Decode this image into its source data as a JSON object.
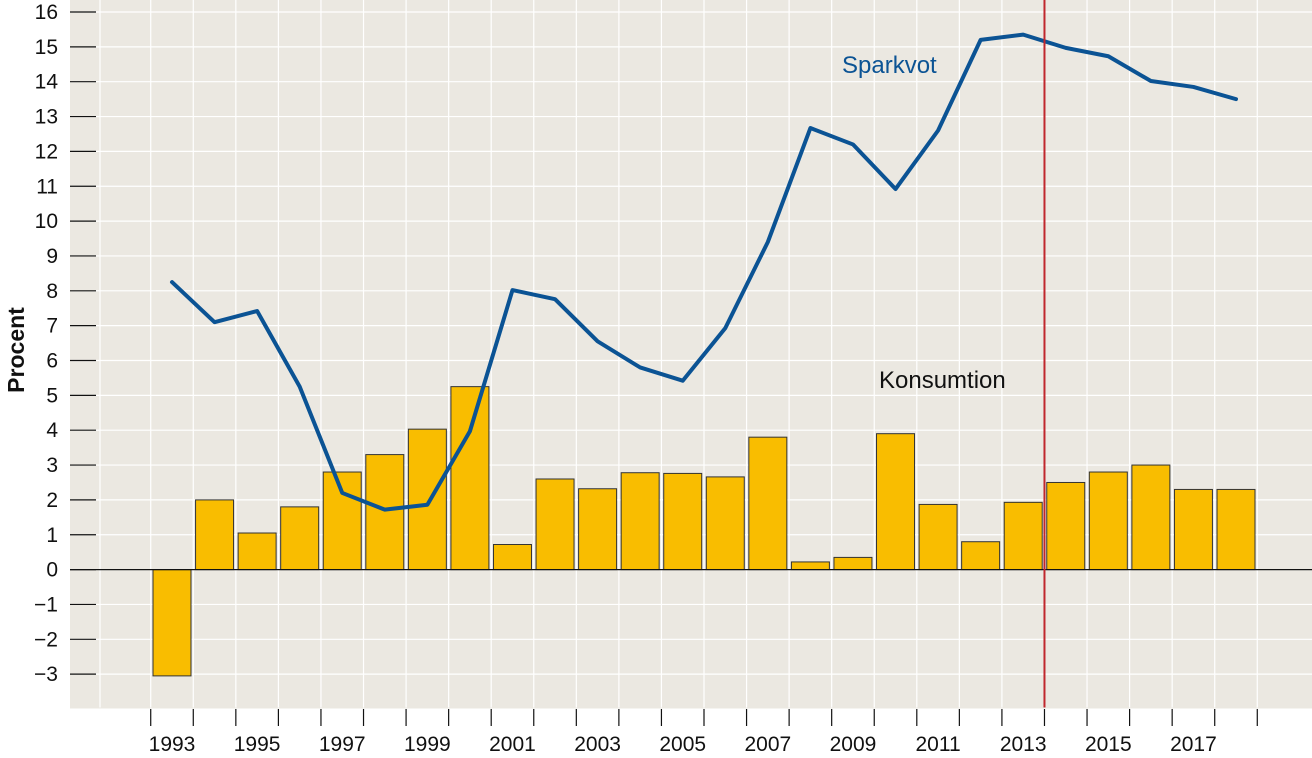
{
  "chart_data": {
    "type": "bar",
    "ylabel": "Procent",
    "ylim": [
      -4,
      16
    ],
    "yticks": [
      16,
      15,
      14,
      13,
      12,
      11,
      10,
      9,
      8,
      7,
      6,
      5,
      4,
      3,
      2,
      1,
      0,
      -1,
      -2,
      -3
    ],
    "ytick_labels": [
      "16",
      "15",
      "14",
      "13",
      "12",
      "11",
      "10",
      "9",
      "8",
      "7",
      "6",
      "5",
      "4",
      "3",
      "2",
      "1",
      "0",
      "−1",
      "−2",
      "−3"
    ],
    "categories": [
      1993,
      1994,
      1995,
      1996,
      1997,
      1998,
      1999,
      2000,
      2001,
      2002,
      2003,
      2004,
      2005,
      2006,
      2007,
      2008,
      2009,
      2010,
      2011,
      2012,
      2013,
      2014,
      2015,
      2016,
      2017,
      2018
    ],
    "xtick_labels": [
      "1993",
      "1995",
      "1997",
      "1999",
      "2001",
      "2003",
      "2005",
      "2007",
      "2009",
      "2011",
      "2013",
      "2015",
      "2017"
    ],
    "series": [
      {
        "name": "Konsumtion",
        "type": "bar",
        "color": "#f9bd00",
        "values": [
          -3.05,
          2.0,
          1.05,
          1.8,
          2.8,
          3.3,
          4.03,
          5.25,
          0.72,
          2.6,
          2.32,
          2.78,
          2.76,
          2.66,
          3.8,
          0.22,
          0.35,
          3.9,
          1.87,
          0.8,
          1.93,
          2.5,
          2.8,
          3.0,
          2.3,
          2.3
        ]
      },
      {
        "name": "Sparkvot",
        "type": "line",
        "color": "#0b5394",
        "values": [
          8.25,
          7.1,
          7.42,
          5.25,
          2.2,
          1.72,
          1.86,
          3.97,
          8.02,
          7.76,
          6.55,
          5.8,
          5.42,
          6.93,
          9.4,
          12.67,
          12.2,
          10.92,
          12.6,
          15.2,
          15.35,
          14.97,
          14.73,
          14.02,
          13.85,
          13.5
        ]
      }
    ],
    "forecast_line": {
      "year": 2013.5,
      "color": "#c0272d"
    },
    "grid": true,
    "background": "#ebe8e1"
  }
}
